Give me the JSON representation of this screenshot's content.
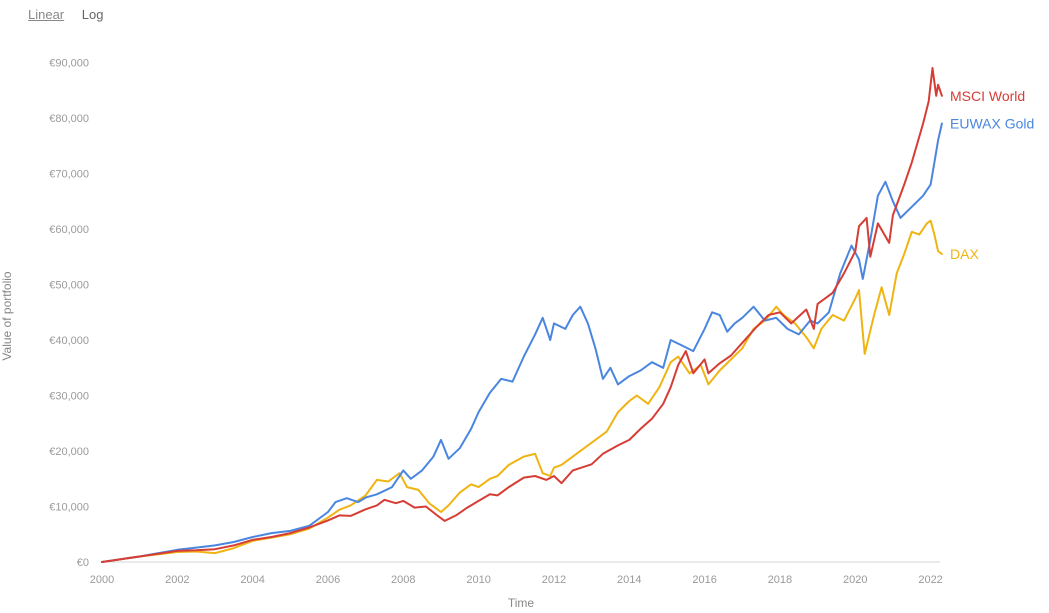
{
  "controls": {
    "linear_label": "Linear",
    "log_label": "Log",
    "active": "Linear"
  },
  "chart_data": {
    "type": "line",
    "title": "",
    "xlabel": "Time",
    "ylabel": "Value of portfolio",
    "xlim": [
      2000,
      2022.3
    ],
    "ylim": [
      0,
      95000
    ],
    "grid": false,
    "legend": "labels at line ends (right)",
    "x_ticks": [
      2000,
      2002,
      2004,
      2006,
      2008,
      2010,
      2012,
      2014,
      2016,
      2018,
      2020,
      2022
    ],
    "x_tick_labels": [
      "2000",
      "2002",
      "2004",
      "2006",
      "2008",
      "2010",
      "2012",
      "2014",
      "2016",
      "2018",
      "2020",
      "2022"
    ],
    "y_ticks": [
      0,
      10000,
      20000,
      30000,
      40000,
      50000,
      60000,
      70000,
      80000,
      90000
    ],
    "y_tick_labels": [
      "€0",
      "€10,000",
      "€20,000",
      "€30,000",
      "€40,000",
      "€50,000",
      "€60,000",
      "€70,000",
      "€80,000",
      "€90,000"
    ],
    "series": [
      {
        "name": "MSCI World",
        "color": "#d63d35",
        "points": [
          [
            2000.0,
            0
          ],
          [
            2000.5,
            500
          ],
          [
            2001.0,
            1000
          ],
          [
            2001.5,
            1500
          ],
          [
            2002.0,
            2000
          ],
          [
            2002.5,
            2100
          ],
          [
            2003.0,
            2300
          ],
          [
            2003.5,
            3000
          ],
          [
            2004.0,
            4000
          ],
          [
            2004.5,
            4500
          ],
          [
            2005.0,
            5200
          ],
          [
            2005.5,
            6200
          ],
          [
            2006.0,
            7500
          ],
          [
            2006.3,
            8400
          ],
          [
            2006.6,
            8300
          ],
          [
            2007.0,
            9500
          ],
          [
            2007.3,
            10200
          ],
          [
            2007.5,
            11200
          ],
          [
            2007.8,
            10600
          ],
          [
            2008.0,
            11000
          ],
          [
            2008.3,
            9800
          ],
          [
            2008.6,
            10000
          ],
          [
            2008.9,
            8400
          ],
          [
            2009.1,
            7400
          ],
          [
            2009.4,
            8400
          ],
          [
            2009.7,
            9800
          ],
          [
            2010.0,
            11000
          ],
          [
            2010.3,
            12200
          ],
          [
            2010.5,
            12000
          ],
          [
            2010.8,
            13500
          ],
          [
            2011.2,
            15200
          ],
          [
            2011.5,
            15500
          ],
          [
            2011.8,
            14800
          ],
          [
            2012.0,
            15500
          ],
          [
            2012.2,
            14200
          ],
          [
            2012.5,
            16500
          ],
          [
            2013.0,
            17600
          ],
          [
            2013.3,
            19500
          ],
          [
            2013.7,
            21000
          ],
          [
            2014.0,
            22000
          ],
          [
            2014.3,
            24000
          ],
          [
            2014.6,
            25800
          ],
          [
            2014.9,
            28500
          ],
          [
            2015.1,
            31500
          ],
          [
            2015.3,
            35500
          ],
          [
            2015.5,
            38000
          ],
          [
            2015.7,
            34000
          ],
          [
            2016.0,
            36500
          ],
          [
            2016.1,
            34000
          ],
          [
            2016.4,
            35800
          ],
          [
            2016.7,
            37200
          ],
          [
            2017.0,
            39500
          ],
          [
            2017.4,
            42500
          ],
          [
            2017.7,
            44500
          ],
          [
            2018.0,
            45000
          ],
          [
            2018.3,
            43000
          ],
          [
            2018.7,
            45500
          ],
          [
            2018.9,
            42000
          ],
          [
            2019.0,
            46500
          ],
          [
            2019.4,
            48500
          ],
          [
            2019.7,
            52000
          ],
          [
            2020.0,
            56000
          ],
          [
            2020.1,
            60500
          ],
          [
            2020.3,
            62000
          ],
          [
            2020.4,
            55000
          ],
          [
            2020.6,
            61000
          ],
          [
            2020.9,
            57500
          ],
          [
            2021.0,
            62500
          ],
          [
            2021.3,
            68000
          ],
          [
            2021.5,
            72000
          ],
          [
            2021.8,
            79000
          ],
          [
            2021.95,
            83000
          ],
          [
            2022.05,
            89000
          ],
          [
            2022.15,
            84000
          ],
          [
            2022.2,
            86000
          ],
          [
            2022.3,
            84000
          ]
        ]
      },
      {
        "name": "EUWAX Gold",
        "color": "#4a86e0",
        "points": [
          [
            2000.0,
            0
          ],
          [
            2000.5,
            500
          ],
          [
            2001.0,
            1000
          ],
          [
            2001.5,
            1600
          ],
          [
            2002.0,
            2200
          ],
          [
            2002.5,
            2600
          ],
          [
            2003.0,
            3000
          ],
          [
            2003.5,
            3600
          ],
          [
            2004.0,
            4500
          ],
          [
            2004.5,
            5200
          ],
          [
            2005.0,
            5600
          ],
          [
            2005.5,
            6500
          ],
          [
            2006.0,
            9000
          ],
          [
            2006.2,
            10800
          ],
          [
            2006.5,
            11500
          ],
          [
            2006.8,
            10800
          ],
          [
            2007.0,
            11600
          ],
          [
            2007.3,
            12200
          ],
          [
            2007.7,
            13500
          ],
          [
            2008.0,
            16500
          ],
          [
            2008.2,
            15000
          ],
          [
            2008.5,
            16500
          ],
          [
            2008.8,
            19000
          ],
          [
            2009.0,
            22000
          ],
          [
            2009.2,
            18600
          ],
          [
            2009.5,
            20500
          ],
          [
            2009.8,
            24000
          ],
          [
            2010.0,
            27000
          ],
          [
            2010.3,
            30500
          ],
          [
            2010.6,
            33000
          ],
          [
            2010.9,
            32500
          ],
          [
            2011.2,
            37000
          ],
          [
            2011.5,
            41000
          ],
          [
            2011.7,
            44000
          ],
          [
            2011.9,
            40000
          ],
          [
            2012.0,
            43000
          ],
          [
            2012.3,
            42000
          ],
          [
            2012.5,
            44500
          ],
          [
            2012.7,
            46000
          ],
          [
            2012.9,
            43000
          ],
          [
            2013.1,
            38500
          ],
          [
            2013.3,
            33000
          ],
          [
            2013.5,
            35000
          ],
          [
            2013.7,
            32000
          ],
          [
            2014.0,
            33500
          ],
          [
            2014.3,
            34500
          ],
          [
            2014.6,
            36000
          ],
          [
            2014.9,
            35000
          ],
          [
            2015.1,
            40000
          ],
          [
            2015.4,
            39000
          ],
          [
            2015.7,
            38000
          ],
          [
            2016.0,
            42000
          ],
          [
            2016.2,
            45000
          ],
          [
            2016.4,
            44500
          ],
          [
            2016.6,
            41500
          ],
          [
            2016.8,
            43000
          ],
          [
            2017.0,
            44000
          ],
          [
            2017.3,
            46000
          ],
          [
            2017.6,
            43500
          ],
          [
            2017.9,
            44000
          ],
          [
            2018.2,
            42000
          ],
          [
            2018.5,
            41000
          ],
          [
            2018.8,
            43500
          ],
          [
            2019.0,
            43000
          ],
          [
            2019.3,
            45000
          ],
          [
            2019.6,
            52000
          ],
          [
            2019.9,
            57000
          ],
          [
            2020.1,
            54500
          ],
          [
            2020.2,
            51000
          ],
          [
            2020.4,
            58000
          ],
          [
            2020.6,
            66000
          ],
          [
            2020.8,
            68500
          ],
          [
            2021.0,
            65000
          ],
          [
            2021.2,
            62000
          ],
          [
            2021.5,
            64000
          ],
          [
            2021.8,
            66000
          ],
          [
            2022.0,
            68000
          ],
          [
            2022.1,
            72000
          ],
          [
            2022.2,
            76000
          ],
          [
            2022.3,
            79000
          ]
        ]
      },
      {
        "name": "DAX",
        "color": "#f0b412",
        "points": [
          [
            2000.0,
            0
          ],
          [
            2000.5,
            500
          ],
          [
            2001.0,
            1000
          ],
          [
            2001.5,
            1400
          ],
          [
            2002.0,
            1800
          ],
          [
            2002.5,
            1900
          ],
          [
            2003.0,
            1600
          ],
          [
            2003.5,
            2500
          ],
          [
            2004.0,
            3800
          ],
          [
            2004.5,
            4400
          ],
          [
            2005.0,
            5000
          ],
          [
            2005.5,
            6000
          ],
          [
            2006.0,
            8000
          ],
          [
            2006.3,
            9400
          ],
          [
            2006.6,
            10200
          ],
          [
            2007.0,
            12000
          ],
          [
            2007.3,
            14800
          ],
          [
            2007.6,
            14500
          ],
          [
            2007.9,
            16000
          ],
          [
            2008.1,
            13500
          ],
          [
            2008.4,
            13000
          ],
          [
            2008.7,
            10500
          ],
          [
            2009.0,
            9000
          ],
          [
            2009.2,
            10200
          ],
          [
            2009.5,
            12500
          ],
          [
            2009.8,
            14000
          ],
          [
            2010.0,
            13500
          ],
          [
            2010.3,
            15000
          ],
          [
            2010.5,
            15500
          ],
          [
            2010.8,
            17500
          ],
          [
            2011.2,
            19000
          ],
          [
            2011.5,
            19500
          ],
          [
            2011.7,
            16000
          ],
          [
            2011.9,
            15500
          ],
          [
            2012.0,
            17000
          ],
          [
            2012.2,
            17500
          ],
          [
            2012.5,
            19000
          ],
          [
            2012.8,
            20500
          ],
          [
            2013.1,
            22000
          ],
          [
            2013.4,
            23500
          ],
          [
            2013.7,
            27000
          ],
          [
            2014.0,
            29000
          ],
          [
            2014.2,
            30000
          ],
          [
            2014.5,
            28500
          ],
          [
            2014.8,
            31500
          ],
          [
            2015.1,
            36000
          ],
          [
            2015.3,
            37000
          ],
          [
            2015.6,
            34000
          ],
          [
            2015.9,
            35500
          ],
          [
            2016.1,
            32000
          ],
          [
            2016.4,
            34500
          ],
          [
            2016.7,
            36500
          ],
          [
            2017.0,
            38500
          ],
          [
            2017.3,
            42000
          ],
          [
            2017.6,
            43500
          ],
          [
            2017.9,
            46000
          ],
          [
            2018.1,
            44500
          ],
          [
            2018.4,
            43000
          ],
          [
            2018.7,
            40500
          ],
          [
            2018.9,
            38500
          ],
          [
            2019.1,
            42000
          ],
          [
            2019.4,
            44500
          ],
          [
            2019.7,
            43500
          ],
          [
            2020.0,
            47500
          ],
          [
            2020.1,
            49000
          ],
          [
            2020.25,
            37500
          ],
          [
            2020.5,
            44500
          ],
          [
            2020.7,
            49500
          ],
          [
            2020.9,
            44500
          ],
          [
            2021.1,
            52000
          ],
          [
            2021.3,
            55500
          ],
          [
            2021.5,
            59500
          ],
          [
            2021.7,
            59000
          ],
          [
            2021.9,
            61000
          ],
          [
            2022.0,
            61500
          ],
          [
            2022.1,
            59000
          ],
          [
            2022.2,
            56000
          ],
          [
            2022.3,
            55500
          ]
        ]
      }
    ]
  }
}
